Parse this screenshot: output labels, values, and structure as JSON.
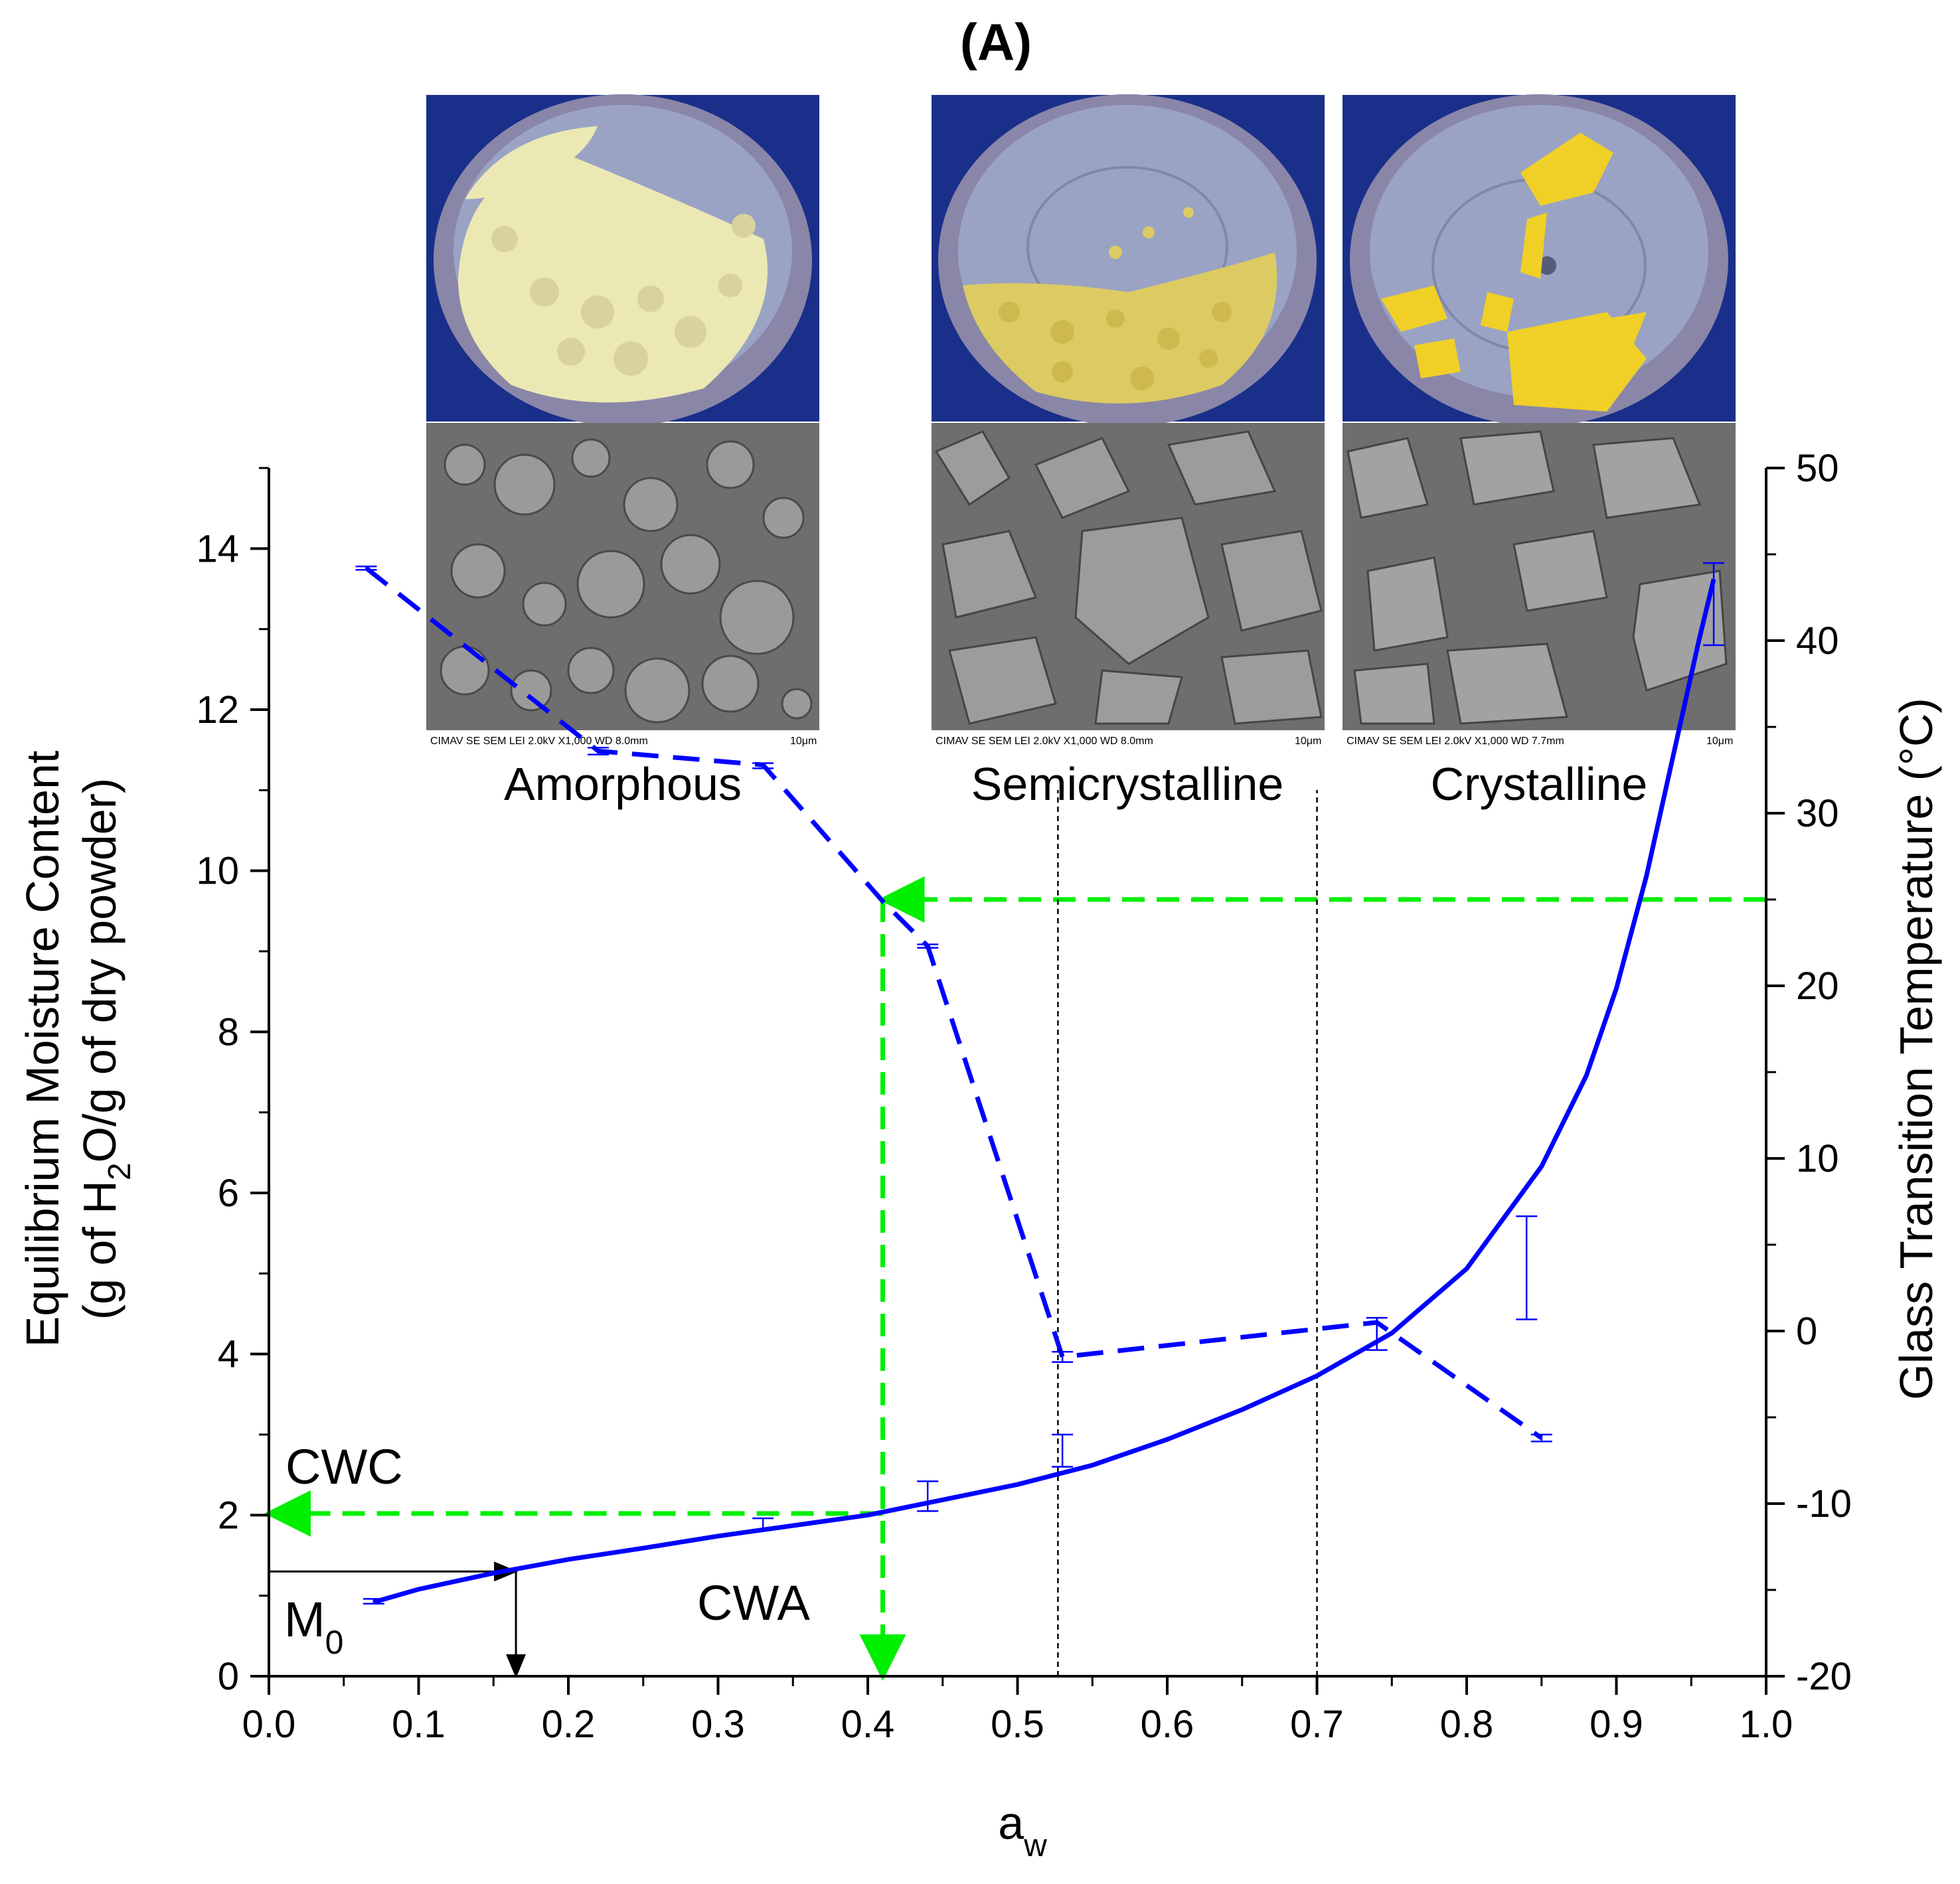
{
  "chart_data": {
    "type": "line",
    "title": "(A)",
    "xlabel": "a",
    "xlabel_sub": "w",
    "ylabel": {
      "line1": "Equilibrium Moisture Content",
      "line2_pre": "(g of H",
      "line2_sub": "2",
      "line2_post": "O/g of dry powder)"
    },
    "y2label": "Glass Transition Temperature (°C)",
    "xlim": [
      0.0,
      1.0
    ],
    "ylim": [
      0,
      15
    ],
    "y2lim": [
      -20,
      50
    ],
    "x_ticks": [
      "0.0",
      "0.1",
      "0.2",
      "0.3",
      "0.4",
      "0.5",
      "0.6",
      "0.7",
      "0.8",
      "0.9",
      "1.0"
    ],
    "y_ticks": [
      "0",
      "2",
      "4",
      "6",
      "8",
      "10",
      "12",
      "14"
    ],
    "y2_ticks": [
      "-20",
      "-10",
      "0",
      "10",
      "20",
      "30",
      "40",
      "50"
    ],
    "series": [
      {
        "name": "Equilibrium moisture content (sorption isotherm)",
        "axis": "left",
        "color": "#0000ff",
        "style": "solid",
        "x": [
          0.07,
          0.1,
          0.15,
          0.2,
          0.25,
          0.3,
          0.35,
          0.4,
          0.45,
          0.5,
          0.55,
          0.6,
          0.65,
          0.7,
          0.75,
          0.8,
          0.85,
          0.88,
          0.9,
          0.92,
          0.94,
          0.955,
          0.965
        ],
        "y": [
          0.92,
          1.08,
          1.28,
          1.45,
          1.59,
          1.74,
          1.87,
          2.0,
          2.19,
          2.38,
          2.62,
          2.94,
          3.31,
          3.73,
          4.26,
          5.06,
          6.33,
          7.46,
          8.54,
          9.93,
          11.6,
          12.85,
          13.62
        ],
        "error_bars": [
          {
            "x": 0.07,
            "low": 0.9,
            "high": 0.96
          },
          {
            "x": 0.33,
            "low": 1.82,
            "high": 1.96
          },
          {
            "x": 0.44,
            "low": 2.05,
            "high": 2.42
          },
          {
            "x": 0.53,
            "low": 2.6,
            "high": 3.0
          },
          {
            "x": 0.74,
            "low": 4.05,
            "high": 4.45
          },
          {
            "x": 0.84,
            "low": 4.43,
            "high": 5.71
          },
          {
            "x": 0.965,
            "low": 12.8,
            "high": 13.82
          }
        ]
      },
      {
        "name": "Glass transition temperature",
        "axis": "right",
        "color": "#0000ff",
        "style": "dashed",
        "x": [
          0.065,
          0.22,
          0.33,
          0.41,
          0.44,
          0.53,
          0.74,
          0.85
        ],
        "y": [
          44.2,
          33.6,
          32.8,
          24.9,
          22.3,
          -1.5,
          0.5,
          -6.2
        ],
        "error_bars": [
          {
            "x": 0.065,
            "low": 44.1,
            "high": 44.3
          },
          {
            "x": 0.22,
            "low": 33.4,
            "high": 33.8
          },
          {
            "x": 0.33,
            "low": 32.6,
            "high": 32.9
          },
          {
            "x": 0.44,
            "low": 22.2,
            "high": 22.4
          },
          {
            "x": 0.53,
            "low": -1.8,
            "high": -1.2
          },
          {
            "x": 0.85,
            "low": -6.4,
            "high": -6.0
          }
        ]
      }
    ],
    "reference_lines": [
      {
        "name": "CWA indicator",
        "color": "#00ee00",
        "style": "dashed",
        "points": [
          [
            1.0,
            25.0
          ],
          [
            0.41,
            25.0
          ],
          [
            0.41,
            -20.0
          ]
        ],
        "axis": "right"
      },
      {
        "name": "CWC indicator",
        "color": "#00ee00",
        "style": "dashed",
        "points": [
          [
            0.41,
            2.02
          ],
          [
            0.0,
            2.02
          ]
        ],
        "axis": "left"
      },
      {
        "name": "M0 indicator",
        "color": "#000000",
        "style": "solid",
        "points": [
          [
            0.0,
            1.3
          ],
          [
            0.165,
            1.3
          ],
          [
            0.165,
            0.0
          ]
        ],
        "axis": "left"
      },
      {
        "name": "amorphous/semicrystalline boundary",
        "color": "#000000",
        "style": "dotted",
        "x": 0.527
      },
      {
        "name": "semicrystalline/crystalline boundary",
        "color": "#000000",
        "style": "dotted",
        "x": 0.7
      }
    ],
    "annotations": {
      "cwc": "CWC",
      "cwa": "CWA",
      "m0": "M",
      "m0_sub": "0"
    },
    "panels": [
      {
        "label": "Amorphous",
        "sem_text": "CIMAV    SE   SEM   LEI   2.0kV   X1,000   WD 8.0mm",
        "scale": "10μm"
      },
      {
        "label": "Semicrystalline",
        "sem_text": "CIMAV    SE   SEM   LEI   2.0kV   X1,000   WD 8.0mm",
        "scale": "10μm"
      },
      {
        "label": "Crystalline",
        "sem_text": "CIMAV    SE   SEM   LEI   2.0kV   X1,000   WD 7.7mm",
        "scale": "10μm"
      }
    ]
  },
  "colors": {
    "curve": "#0000ff",
    "guide": "#00ee00",
    "photo_bg": "#1a2f8a",
    "dish_rim": "#8a86a8",
    "dish_floor": "#9aa3c4",
    "powder_amorphous": "#ece8b4",
    "powder_semi": "#dccb62",
    "crystal": "#f0d026",
    "sem_bg": "#6e6e6e"
  }
}
